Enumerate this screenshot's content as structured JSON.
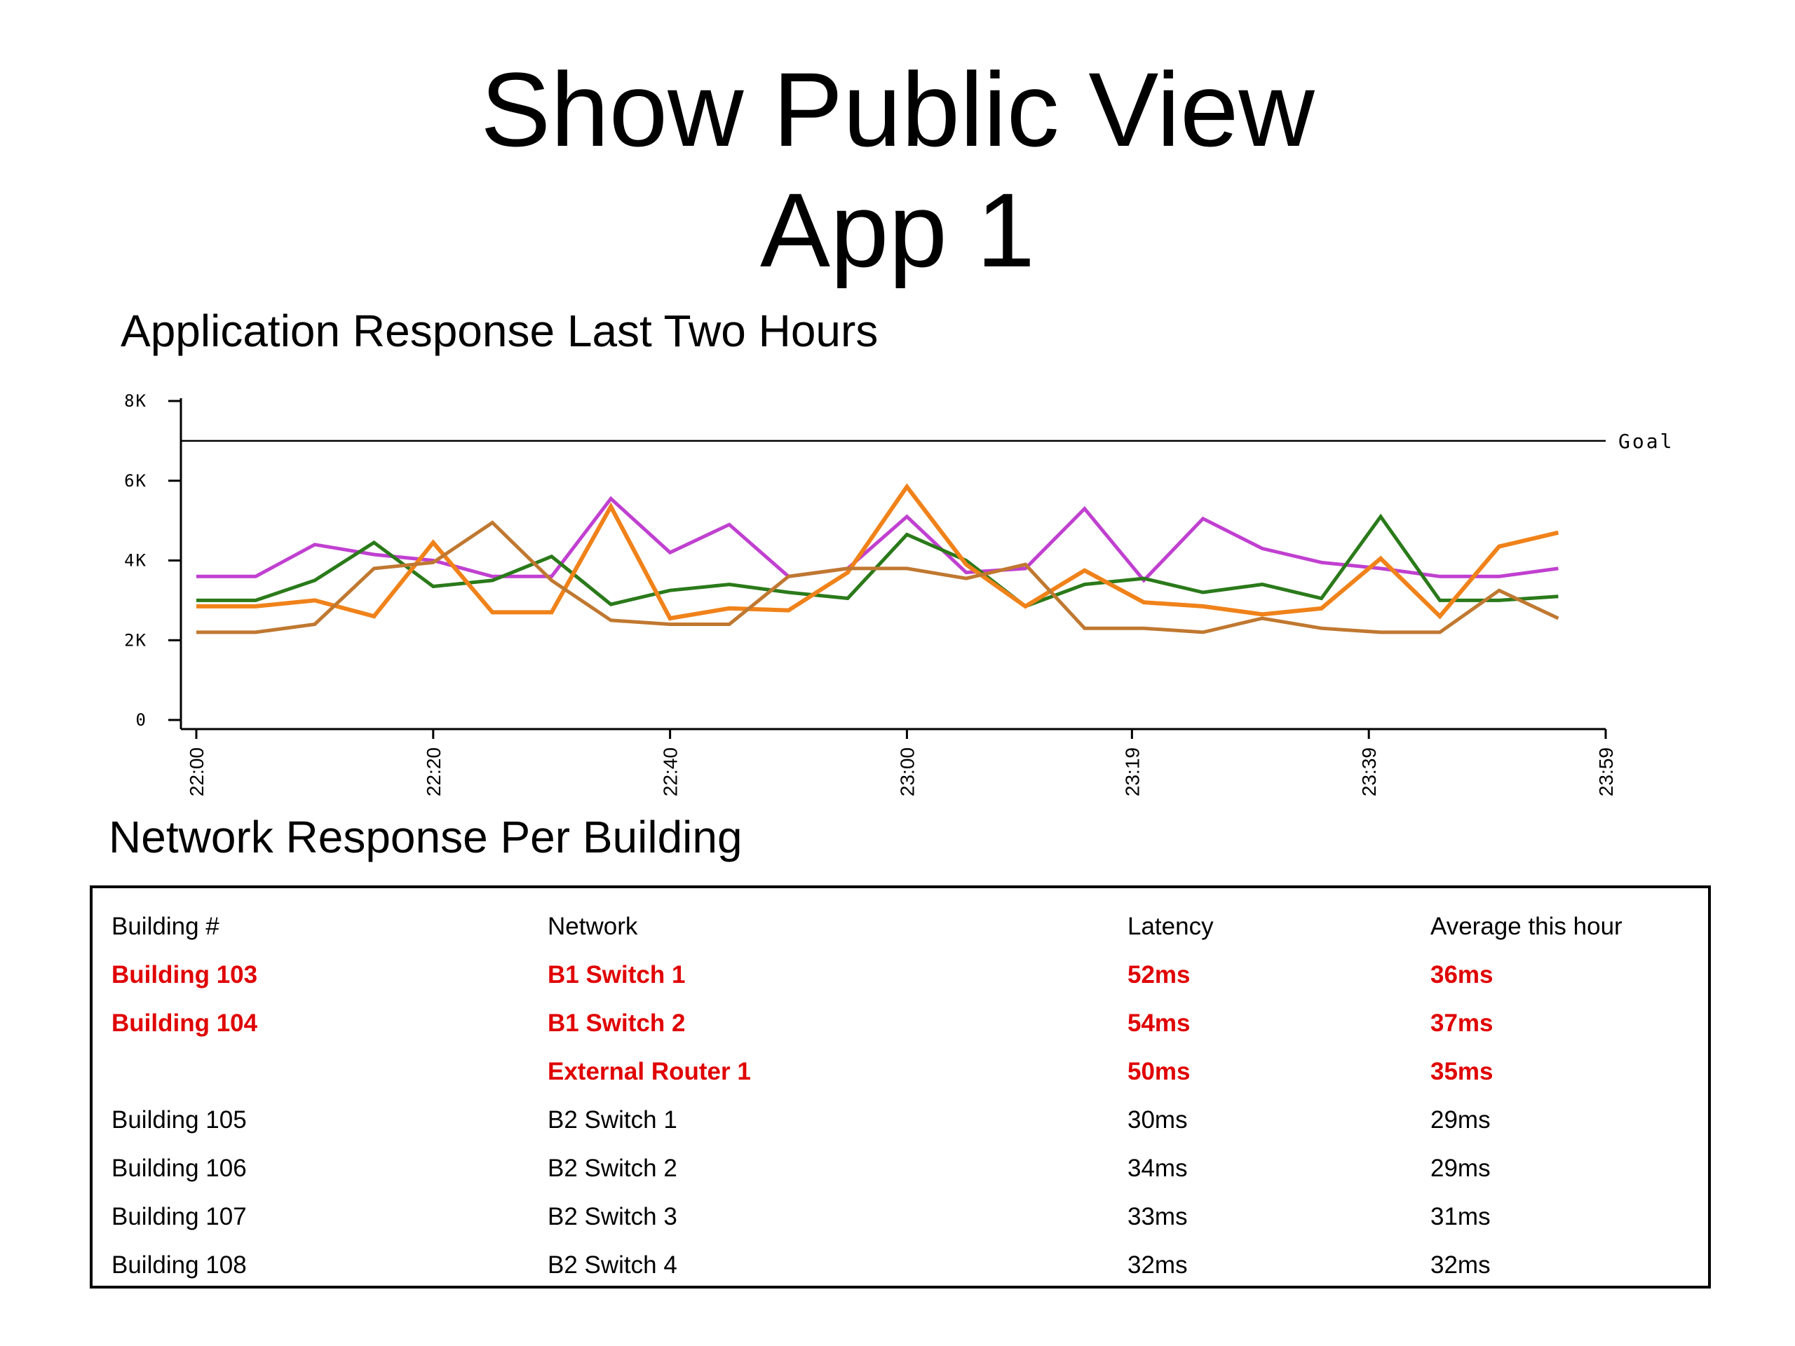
{
  "page": {
    "title_line1": "Show Public View",
    "title_line2": "App 1",
    "chart_heading": "Application Response Last Two Hours",
    "table_heading": "Network Response Per Building"
  },
  "colors": {
    "goal_line": "#000000",
    "alert_text": "#e00000"
  },
  "chart_data": {
    "type": "line",
    "title": "",
    "xlabel": "",
    "ylabel": "",
    "ylim": [
      0,
      8000
    ],
    "yticks": [
      0,
      2000,
      4000,
      6000,
      8000
    ],
    "ytick_labels": [
      "0",
      "2K",
      "4K",
      "6K",
      "8K"
    ],
    "xlim": [
      "22:00",
      "23:59"
    ],
    "xtick_labels": [
      "22:00",
      "22:20",
      "22:40",
      "23:00",
      "23:19",
      "23:39",
      "23:59"
    ],
    "grid": false,
    "goal": {
      "label": "Goal",
      "value": 7000
    },
    "x": [
      "22:00",
      "22:05",
      "22:10",
      "22:15",
      "22:20",
      "22:25",
      "22:30",
      "22:35",
      "22:40",
      "22:45",
      "22:50",
      "22:55",
      "23:00",
      "23:05",
      "23:10",
      "23:15",
      "23:20",
      "23:25",
      "23:30",
      "23:35",
      "23:40",
      "23:45",
      "23:50",
      "23:55"
    ],
    "series": [
      {
        "color": "#c040d0",
        "values": [
          3600,
          3600,
          4400,
          4150,
          4000,
          3600,
          3600,
          5550,
          4200,
          4900,
          3600,
          3800,
          5100,
          3700,
          3800,
          5300,
          3500,
          5050,
          4300,
          3950,
          3800,
          3600,
          3600,
          3800
        ]
      },
      {
        "color": "#2a7a1a",
        "values": [
          3000,
          3000,
          3500,
          4450,
          3350,
          3500,
          4100,
          2900,
          3250,
          3400,
          3200,
          3050,
          4650,
          4000,
          2850,
          3400,
          3550,
          3200,
          3400,
          3050,
          5100,
          3000,
          3000,
          3100
        ]
      },
      {
        "color": "#f0821a",
        "values": [
          2850,
          2850,
          3000,
          2600,
          4450,
          2700,
          2700,
          5350,
          2550,
          2800,
          2750,
          3700,
          5850,
          3900,
          2850,
          3750,
          2950,
          2850,
          2650,
          2800,
          4050,
          2600,
          4350,
          4700
        ]
      },
      {
        "color": "#c07830",
        "values": [
          2200,
          2200,
          2400,
          3800,
          3950,
          4950,
          3500,
          2500,
          2400,
          2400,
          3600,
          3800,
          3800,
          3550,
          3900,
          2300,
          2300,
          2200,
          2550,
          2300,
          2200,
          2200,
          3250,
          2550
        ]
      }
    ]
  },
  "table": {
    "headers": [
      "Building #",
      "Network",
      "Latency",
      "Average this hour"
    ],
    "rows": [
      {
        "alert": true,
        "cells": [
          "Building 103",
          "B1 Switch 1",
          "52ms",
          "36ms"
        ]
      },
      {
        "alert": true,
        "cells": [
          "Building 104",
          "B1 Switch 2",
          "54ms",
          "37ms"
        ]
      },
      {
        "alert": true,
        "cells": [
          "",
          "External Router 1",
          "50ms",
          "35ms"
        ]
      },
      {
        "alert": false,
        "cells": [
          "Building 105",
          "B2 Switch 1",
          "30ms",
          "29ms"
        ]
      },
      {
        "alert": false,
        "cells": [
          "Building 106",
          "B2 Switch 2",
          "34ms",
          "29ms"
        ]
      },
      {
        "alert": false,
        "cells": [
          "Building 107",
          "B2 Switch 3",
          "33ms",
          "31ms"
        ]
      },
      {
        "alert": false,
        "cells": [
          "Building 108",
          "B2 Switch 4",
          "32ms",
          "32ms"
        ]
      }
    ]
  }
}
